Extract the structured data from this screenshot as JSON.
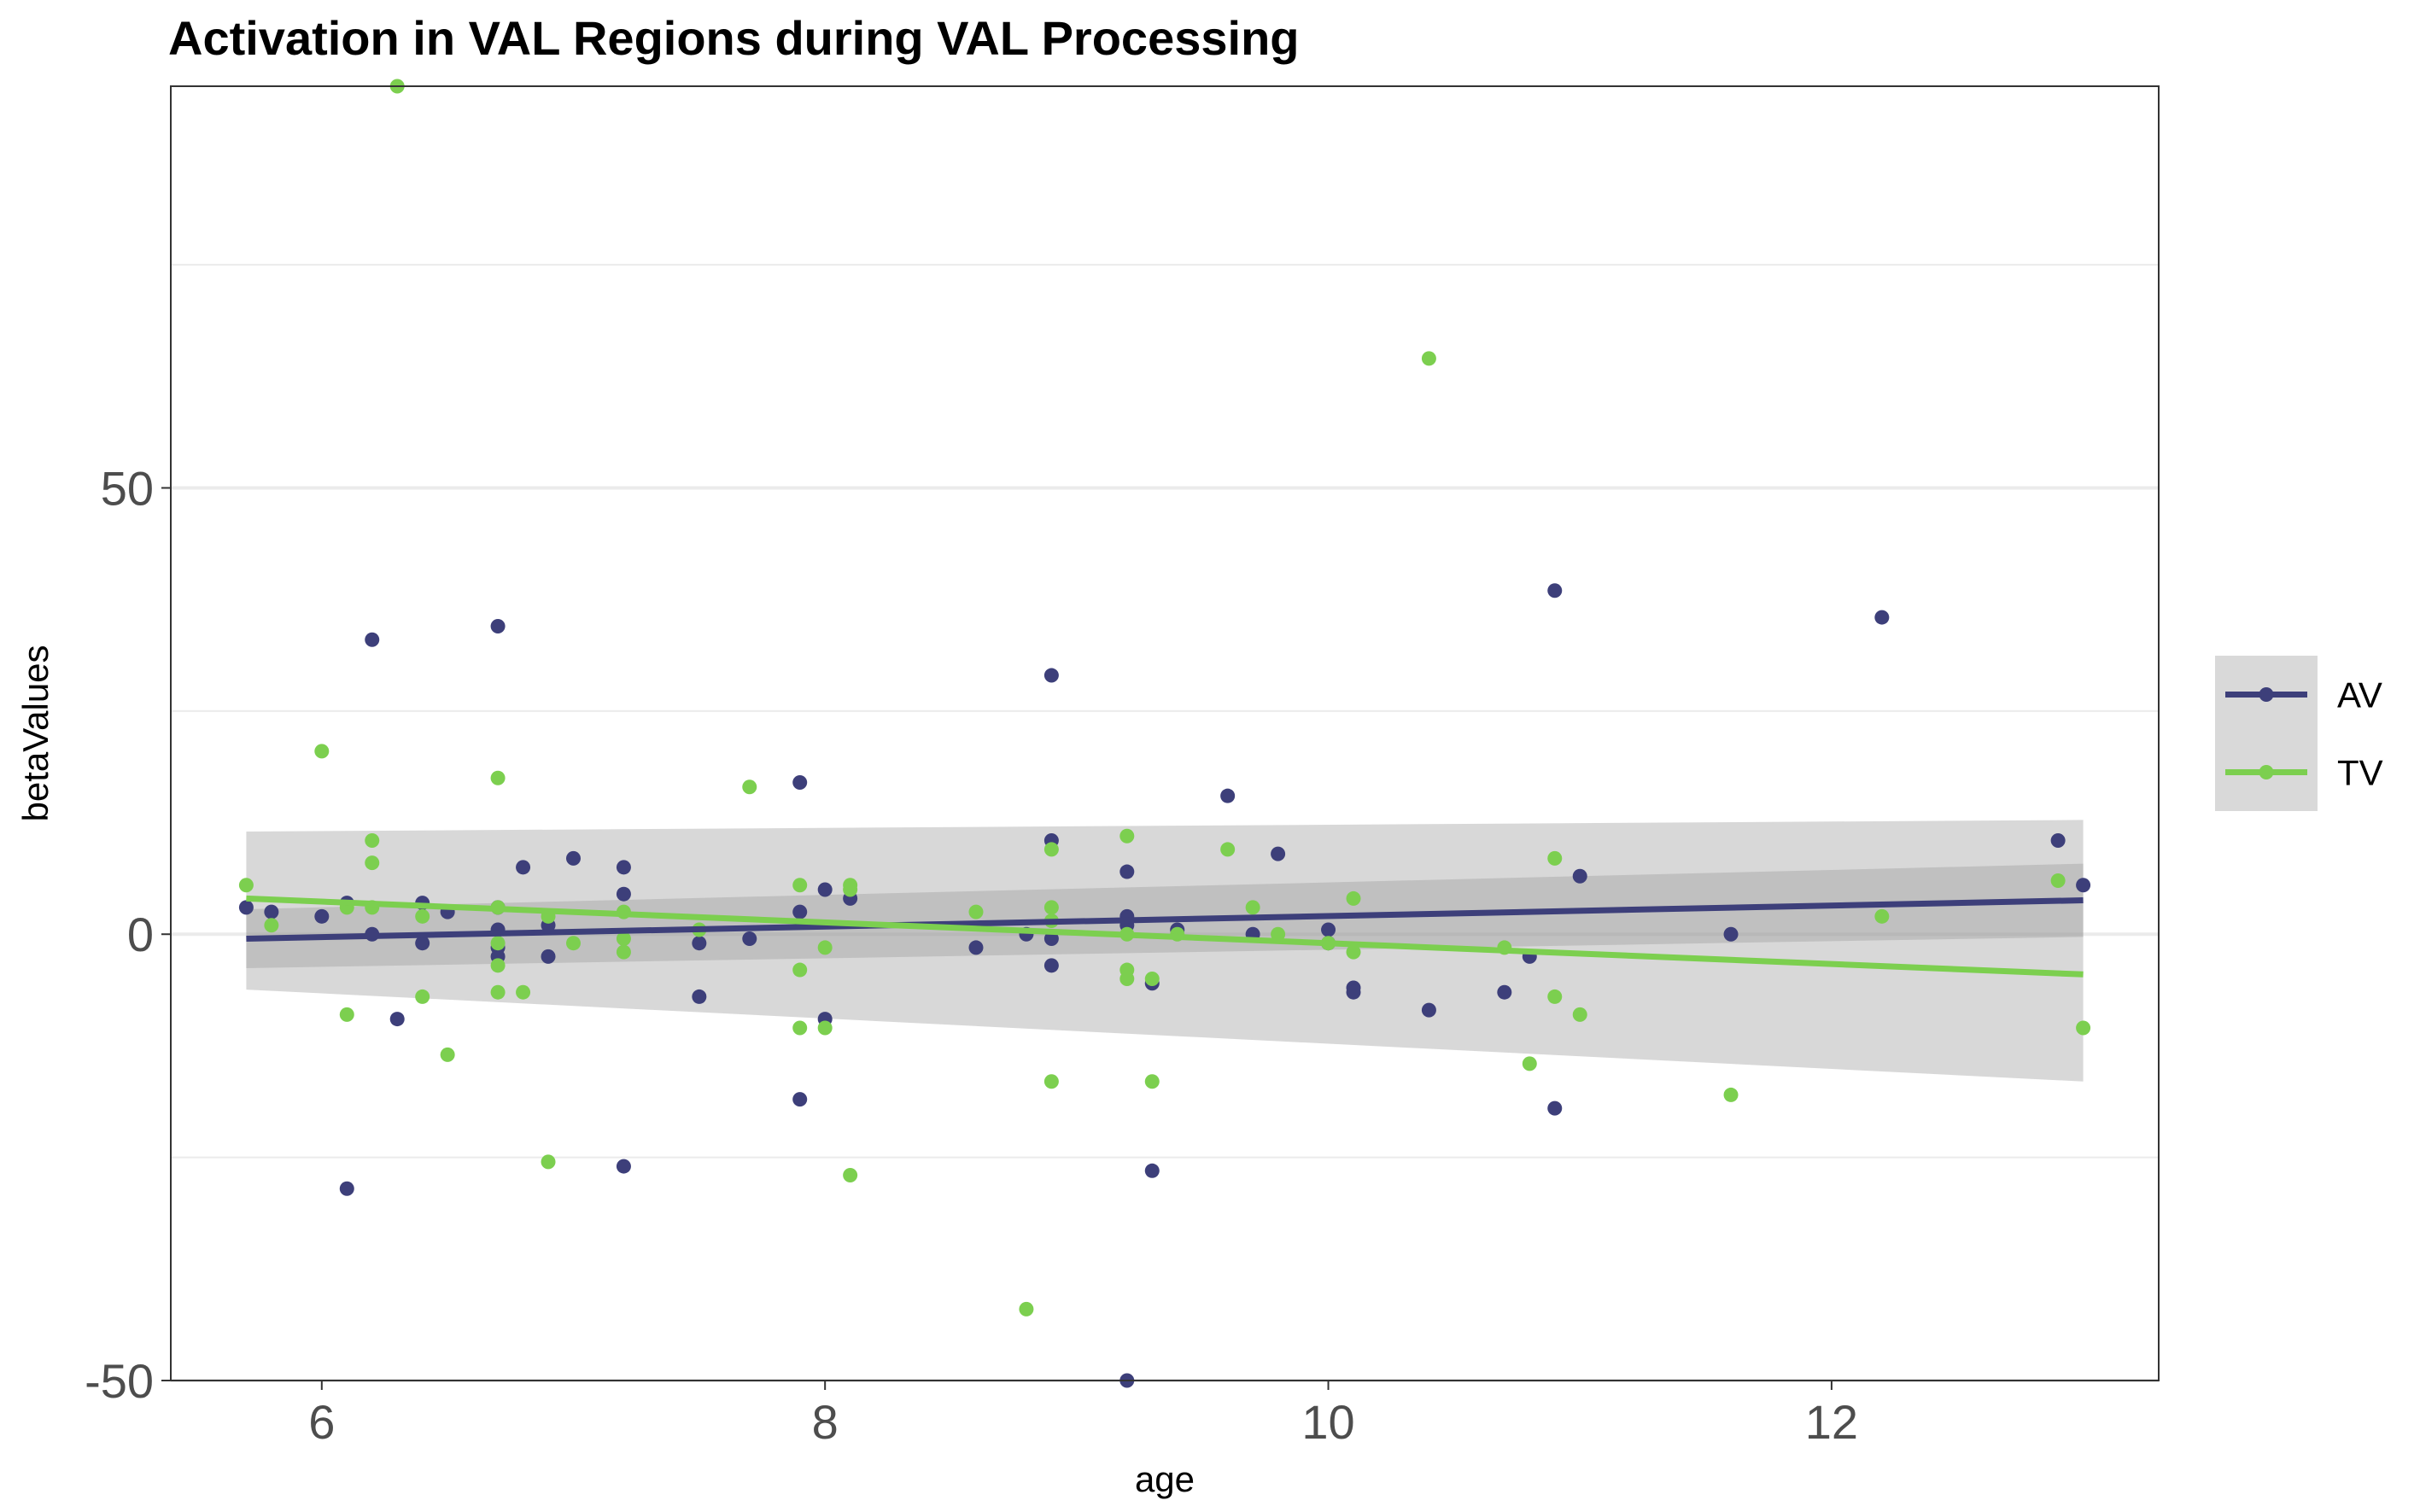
{
  "chart_data": {
    "type": "scatter",
    "title": "Activation in VAL Regions during VAL Processing",
    "xlabel": "age",
    "ylabel": "betaValues",
    "xlim": [
      5.4,
      13.3
    ],
    "ylim": [
      -50,
      95
    ],
    "x_ticks": [
      6,
      8,
      10,
      12
    ],
    "y_ticks": [
      50,
      0,
      -50
    ],
    "y_tick_labels": [
      "50",
      "0",
      "-50"
    ],
    "grid": true,
    "legend_position": "right",
    "series": [
      {
        "name": "AV",
        "color": "#3d3f7a",
        "points": [
          [
            5.7,
            3
          ],
          [
            5.8,
            2.5
          ],
          [
            6.0,
            2
          ],
          [
            6.1,
            3.5
          ],
          [
            6.1,
            -28.5
          ],
          [
            6.2,
            33
          ],
          [
            6.2,
            0
          ],
          [
            6.3,
            -9.5
          ],
          [
            6.4,
            3.5
          ],
          [
            6.4,
            -1
          ],
          [
            6.5,
            2.5
          ],
          [
            6.7,
            34.5
          ],
          [
            6.7,
            3
          ],
          [
            6.7,
            0.5
          ],
          [
            6.7,
            -1.5
          ],
          [
            6.7,
            -2.5
          ],
          [
            6.8,
            7.5
          ],
          [
            6.9,
            -2.5
          ],
          [
            6.9,
            1
          ],
          [
            7.0,
            8.5
          ],
          [
            7.2,
            7.5
          ],
          [
            7.2,
            4.5
          ],
          [
            7.2,
            -26
          ],
          [
            7.5,
            -7
          ],
          [
            7.5,
            -1
          ],
          [
            7.7,
            -0.5
          ],
          [
            7.9,
            17
          ],
          [
            7.9,
            2.5
          ],
          [
            7.9,
            -18.5
          ],
          [
            8.0,
            5
          ],
          [
            8.0,
            -9.5
          ],
          [
            8.1,
            4
          ],
          [
            8.6,
            -1.5
          ],
          [
            8.8,
            0
          ],
          [
            8.9,
            29
          ],
          [
            8.9,
            10.5
          ],
          [
            8.9,
            -0.5
          ],
          [
            8.9,
            -3.5
          ],
          [
            9.2,
            7
          ],
          [
            9.2,
            2
          ],
          [
            9.2,
            1
          ],
          [
            9.2,
            -50
          ],
          [
            9.3,
            -5.5
          ],
          [
            9.3,
            -26.5
          ],
          [
            9.4,
            0.5
          ],
          [
            9.6,
            15.5
          ],
          [
            9.7,
            0
          ],
          [
            9.8,
            9
          ],
          [
            10.0,
            0.5
          ],
          [
            10.0,
            -1
          ],
          [
            10.1,
            -6
          ],
          [
            10.1,
            -6.5
          ],
          [
            10.4,
            -8.5
          ],
          [
            10.7,
            -6.5
          ],
          [
            10.8,
            -2.5
          ],
          [
            10.9,
            38.5
          ],
          [
            10.9,
            -19.5
          ],
          [
            11.0,
            6.5
          ],
          [
            11.6,
            0
          ],
          [
            12.2,
            35.5
          ],
          [
            12.9,
            10.5
          ],
          [
            13.0,
            5.5
          ]
        ],
        "fit": {
          "x": [
            5.7,
            13.0
          ],
          "y": [
            -0.5,
            3.8
          ],
          "ci_lower": [
            -3.8,
            -0.3
          ],
          "ci_upper": [
            2.8,
            7.9
          ]
        }
      },
      {
        "name": "TV",
        "color": "#7ccf4f",
        "points": [
          [
            5.7,
            5.5
          ],
          [
            5.8,
            1
          ],
          [
            6.0,
            20.5
          ],
          [
            6.1,
            -9
          ],
          [
            6.1,
            3
          ],
          [
            6.2,
            10.5
          ],
          [
            6.2,
            8
          ],
          [
            6.2,
            3
          ],
          [
            6.3,
            95
          ],
          [
            6.4,
            2
          ],
          [
            6.4,
            -7
          ],
          [
            6.5,
            -13.5
          ],
          [
            6.7,
            17.5
          ],
          [
            6.7,
            3
          ],
          [
            6.7,
            -1
          ],
          [
            6.7,
            -3.5
          ],
          [
            6.7,
            -6.5
          ],
          [
            6.8,
            -6.5
          ],
          [
            6.9,
            2
          ],
          [
            6.9,
            -25.5
          ],
          [
            7.0,
            -1
          ],
          [
            7.2,
            2.5
          ],
          [
            7.2,
            -0.5
          ],
          [
            7.2,
            -2
          ],
          [
            7.5,
            0.5
          ],
          [
            7.7,
            16.5
          ],
          [
            7.9,
            5.5
          ],
          [
            7.9,
            -4
          ],
          [
            7.9,
            -10.5
          ],
          [
            8.0,
            -1.5
          ],
          [
            8.0,
            -10.5
          ],
          [
            8.1,
            5.5
          ],
          [
            8.1,
            5
          ],
          [
            8.1,
            -27
          ],
          [
            8.6,
            2.5
          ],
          [
            8.8,
            -42
          ],
          [
            8.9,
            9.5
          ],
          [
            8.9,
            3
          ],
          [
            8.9,
            1.5
          ],
          [
            8.9,
            -16.5
          ],
          [
            9.2,
            11
          ],
          [
            9.2,
            0
          ],
          [
            9.2,
            -4
          ],
          [
            9.2,
            -5
          ],
          [
            9.3,
            -5
          ],
          [
            9.3,
            -16.5
          ],
          [
            9.4,
            0
          ],
          [
            9.6,
            9.5
          ],
          [
            9.7,
            3
          ],
          [
            9.8,
            0
          ],
          [
            10.0,
            -1
          ],
          [
            10.1,
            4
          ],
          [
            10.1,
            -2
          ],
          [
            10.4,
            64.5
          ],
          [
            10.7,
            -1.5
          ],
          [
            10.8,
            -14.5
          ],
          [
            10.9,
            8.5
          ],
          [
            10.9,
            -7
          ],
          [
            11.0,
            -9
          ],
          [
            11.6,
            -18
          ],
          [
            12.2,
            2
          ],
          [
            12.9,
            6
          ],
          [
            13.0,
            -10.5
          ]
        ],
        "fit": {
          "x": [
            5.7,
            13.0
          ],
          "y": [
            4.0,
            -4.5
          ],
          "ci_lower": [
            -6.2,
            -16.5
          ],
          "ci_upper": [
            11.5,
            12.8
          ]
        }
      }
    ]
  }
}
